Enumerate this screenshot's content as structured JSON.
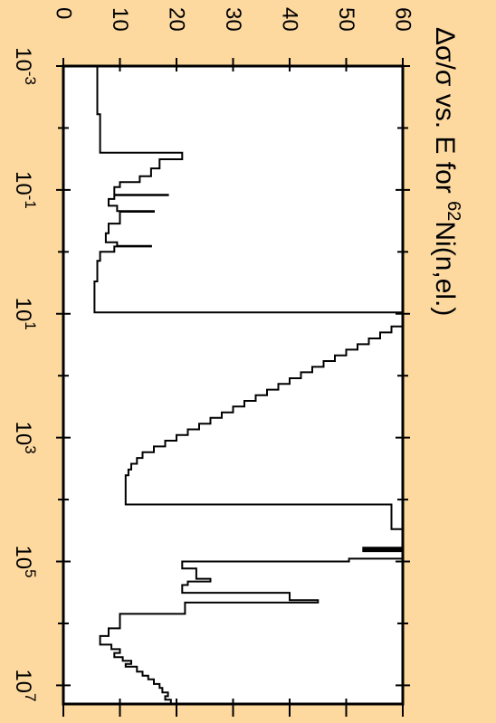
{
  "chart_data": {
    "type": "line",
    "title": "Δσ/σ vs. E for",
    "title_suffix": "Ni(n,el.)",
    "title_isotope": "62",
    "orientation": "rotated-90-clockwise",
    "background": "#fdd9a0",
    "plot_background": "#ffffff",
    "line_color": "#000000",
    "xscale": "log",
    "xlim": [
      0.001,
      20000000
    ],
    "ylim": [
      0,
      60
    ],
    "x_ticks": [
      {
        "value": 0.001,
        "base": "10",
        "exp": "-3"
      },
      {
        "value": 0.1,
        "base": "10",
        "exp": "-1"
      },
      {
        "value": 10,
        "base": "10",
        "exp": "1"
      },
      {
        "value": 1000,
        "base": "10",
        "exp": "3"
      },
      {
        "value": 100000,
        "base": "10",
        "exp": "5"
      },
      {
        "value": 10000000,
        "base": "10",
        "exp": "7"
      }
    ],
    "y_ticks": [
      "0",
      "10",
      "20",
      "30",
      "40",
      "50",
      "60"
    ],
    "series": [
      {
        "values": [
          [
            0.001,
            6
          ],
          [
            0.006,
            6
          ],
          [
            0.006,
            6.5
          ],
          [
            0.025,
            6.5
          ],
          [
            0.025,
            21
          ],
          [
            0.032,
            21
          ],
          [
            0.032,
            17
          ],
          [
            0.045,
            17
          ],
          [
            0.045,
            15.5
          ],
          [
            0.06,
            15.5
          ],
          [
            0.06,
            13.5
          ],
          [
            0.075,
            13.5
          ],
          [
            0.075,
            10
          ],
          [
            0.09,
            10
          ],
          [
            0.09,
            9
          ],
          [
            0.12,
            9
          ],
          [
            0.12,
            18.5
          ],
          [
            0.122,
            18.5
          ],
          [
            0.122,
            9
          ],
          [
            0.14,
            9
          ],
          [
            0.14,
            8
          ],
          [
            0.18,
            8
          ],
          [
            0.18,
            9.5
          ],
          [
            0.22,
            9.5
          ],
          [
            0.22,
            16
          ],
          [
            0.225,
            16
          ],
          [
            0.225,
            10
          ],
          [
            0.35,
            10
          ],
          [
            0.35,
            8
          ],
          [
            0.5,
            8
          ],
          [
            0.5,
            7.5
          ],
          [
            0.7,
            7.5
          ],
          [
            0.7,
            9.5
          ],
          [
            0.8,
            9.5
          ],
          [
            0.8,
            15.5
          ],
          [
            0.82,
            15.5
          ],
          [
            0.82,
            9
          ],
          [
            1.0,
            9
          ],
          [
            1.0,
            6.5
          ],
          [
            1.4,
            6.5
          ],
          [
            1.4,
            6
          ],
          [
            3,
            6
          ],
          [
            3,
            5.5
          ],
          [
            9.5,
            5.5
          ],
          [
            9.5,
            60
          ]
        ]
      },
      {
        "values": [
          [
            16,
            60
          ],
          [
            16,
            58
          ],
          [
            20,
            58
          ],
          [
            20,
            56
          ],
          [
            25,
            56
          ],
          [
            25,
            54
          ],
          [
            31,
            54
          ],
          [
            31,
            52
          ],
          [
            38,
            52
          ],
          [
            38,
            50
          ],
          [
            47,
            50
          ],
          [
            47,
            48
          ],
          [
            58,
            48
          ],
          [
            58,
            46
          ],
          [
            72,
            46
          ],
          [
            72,
            44
          ],
          [
            88,
            44
          ],
          [
            88,
            42
          ],
          [
            110,
            42
          ],
          [
            110,
            40
          ],
          [
            136,
            40
          ],
          [
            136,
            38
          ],
          [
            168,
            38
          ],
          [
            168,
            36
          ],
          [
            207,
            36
          ],
          [
            207,
            34
          ],
          [
            255,
            34
          ],
          [
            255,
            32
          ],
          [
            315,
            32
          ],
          [
            315,
            30
          ],
          [
            390,
            30
          ],
          [
            390,
            28
          ],
          [
            480,
            28
          ],
          [
            480,
            26
          ],
          [
            595,
            26
          ],
          [
            595,
            24
          ],
          [
            735,
            24
          ],
          [
            735,
            22
          ],
          [
            910,
            22
          ],
          [
            910,
            20
          ],
          [
            1120,
            20
          ],
          [
            1120,
            18
          ],
          [
            1390,
            18
          ],
          [
            1390,
            16
          ],
          [
            1720,
            16
          ],
          [
            1720,
            14
          ],
          [
            2130,
            14
          ],
          [
            2130,
            13
          ],
          [
            2640,
            13
          ],
          [
            2640,
            12
          ],
          [
            3270,
            12
          ],
          [
            3270,
            11.5
          ],
          [
            4050,
            11.5
          ],
          [
            4050,
            11
          ],
          [
            12000,
            11
          ],
          [
            12000,
            58
          ],
          [
            30000,
            58
          ],
          [
            30000,
            60
          ]
        ]
      },
      {
        "values": [
          [
            60000,
            60
          ],
          [
            60000,
            53
          ],
          [
            63000,
            53
          ],
          [
            63000,
            60
          ],
          [
            65000,
            60
          ],
          [
            65000,
            53
          ],
          [
            68000,
            53
          ],
          [
            68000,
            60
          ],
          [
            90000,
            60
          ],
          [
            90000,
            50.5
          ],
          [
            100000,
            50.5
          ],
          [
            100000,
            21
          ],
          [
            130000,
            21
          ],
          [
            130000,
            23.5
          ],
          [
            190000,
            23.5
          ],
          [
            190000,
            26
          ],
          [
            210000,
            26
          ],
          [
            210000,
            22
          ],
          [
            240000,
            22
          ],
          [
            240000,
            21
          ],
          [
            320000,
            21
          ],
          [
            320000,
            40
          ],
          [
            420000,
            40
          ],
          [
            420000,
            45
          ],
          [
            460000,
            45
          ],
          [
            460000,
            21.5
          ],
          [
            700000,
            21.5
          ],
          [
            700000,
            10
          ],
          [
            1200000,
            10
          ],
          [
            1200000,
            8
          ],
          [
            1600000,
            8
          ],
          [
            1600000,
            6.5
          ],
          [
            2200000,
            6.5
          ],
          [
            2200000,
            8.5
          ],
          [
            2600000,
            8.5
          ],
          [
            2600000,
            10
          ],
          [
            3000000,
            10
          ],
          [
            3000000,
            9
          ],
          [
            3500000,
            9
          ],
          [
            3500000,
            10.5
          ],
          [
            4000000,
            10.5
          ],
          [
            4000000,
            12
          ],
          [
            4500000,
            12
          ],
          [
            4500000,
            11
          ],
          [
            5000000,
            11
          ],
          [
            5000000,
            13
          ],
          [
            6000000,
            13
          ],
          [
            6000000,
            14
          ],
          [
            7000000,
            14
          ],
          [
            7000000,
            15
          ],
          [
            8000000,
            15
          ],
          [
            8000000,
            16
          ],
          [
            9500000,
            16
          ],
          [
            9500000,
            17
          ],
          [
            11000000,
            17
          ],
          [
            11000000,
            17.5
          ],
          [
            13000000,
            17.5
          ],
          [
            13000000,
            18.5
          ],
          [
            15000000,
            18.5
          ],
          [
            15000000,
            18
          ],
          [
            17000000,
            18
          ],
          [
            17000000,
            19
          ],
          [
            20000000,
            19
          ]
        ]
      }
    ]
  }
}
